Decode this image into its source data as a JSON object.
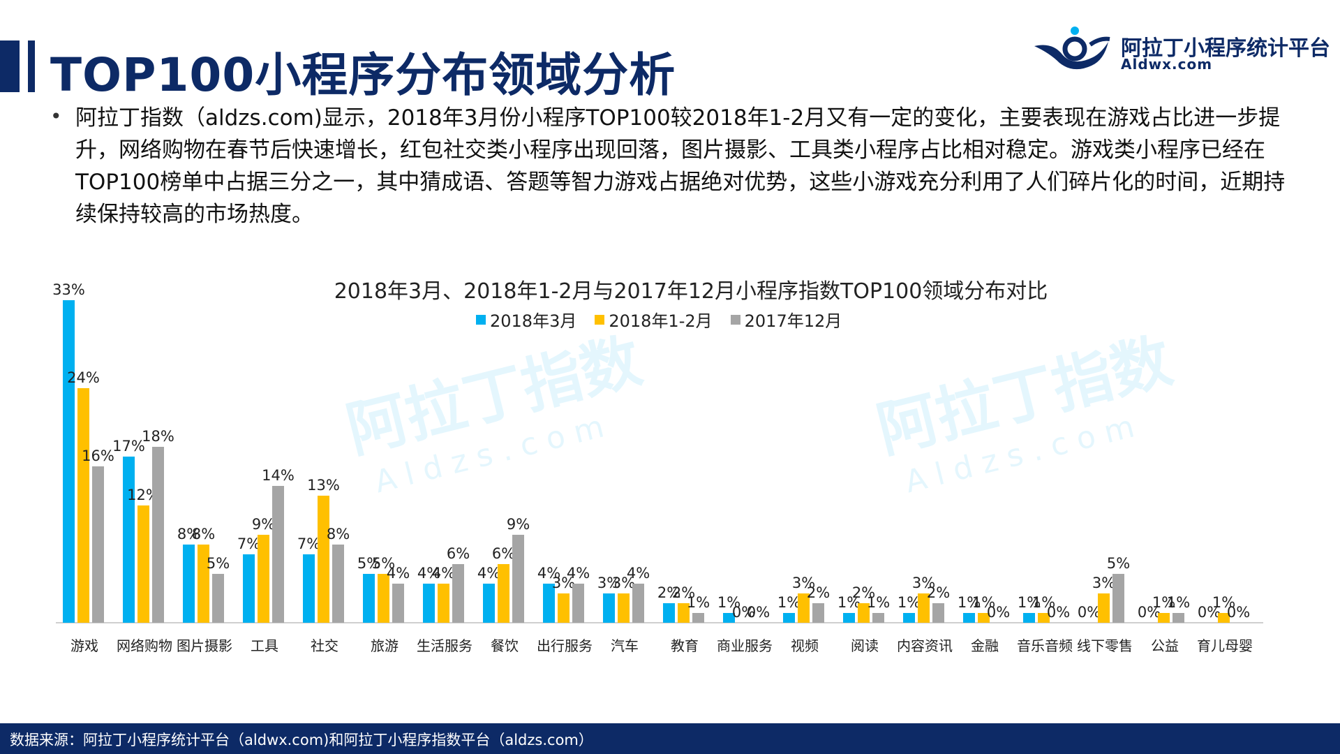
{
  "header": {
    "title": "TOP100小程序分布领域分析",
    "logo_cn": "阿拉丁小程序统计平台",
    "logo_en": "Aldwx.com"
  },
  "bullet": {
    "dot": "•",
    "text": "阿拉丁指数（aldzs.com)显示，2018年3月份小程序TOP100较2018年1-2月又有一定的变化，主要表现在游戏占比进一步提升，网络购物在春节后快速增长，红包社交类小程序出现回落，图片摄影、工具类小程序占比相对稳定。游戏类小程序已经在TOP100榜单中占据三分之一，其中猜成语、答题等智力游戏占据绝对优势，这些小游戏充分利用了人们碎片化的时间，近期持续保持较高的市场热度。"
  },
  "watermark": {
    "cn": "阿拉丁指数",
    "en": "Aldzs.com"
  },
  "colors": {
    "s1": "#00b0f0",
    "s2": "#ffc000",
    "s3": "#a5a5a5",
    "brand": "#0d2a66"
  },
  "chart_data": {
    "type": "bar",
    "title": "2018年3月、2018年1-2月与2017年12月小程序指数TOP100领域分布对比",
    "categories": [
      "游戏",
      "网络购物",
      "图片摄影",
      "工具",
      "社交",
      "旅游",
      "生活服务",
      "餐饮",
      "出行服务",
      "汽车",
      "教育",
      "商业服务",
      "视频",
      "阅读",
      "内容资讯",
      "金融",
      "音乐音频",
      "线下零售",
      "公益",
      "育儿母婴"
    ],
    "series": [
      {
        "name": "2018年3月",
        "color": "#00b0f0",
        "values": [
          33,
          17,
          8,
          7,
          7,
          5,
          4,
          4,
          4,
          3,
          2,
          1,
          1,
          1,
          1,
          1,
          1,
          0,
          0,
          0
        ]
      },
      {
        "name": "2018年1-2月",
        "color": "#ffc000",
        "values": [
          24,
          12,
          8,
          9,
          13,
          5,
          4,
          6,
          3,
          3,
          2,
          0,
          3,
          2,
          3,
          1,
          1,
          3,
          1,
          1
        ]
      },
      {
        "name": "2017年12月",
        "color": "#a5a5a5",
        "values": [
          16,
          18,
          5,
          14,
          8,
          4,
          6,
          9,
          4,
          4,
          1,
          0,
          2,
          1,
          2,
          0,
          0,
          5,
          1,
          0
        ]
      }
    ],
    "value_suffix": "%",
    "legend_position": "top",
    "grid": false
  },
  "footer": {
    "source": "数据来源：阿拉丁小程序统计平台（aldwx.com)和阿拉丁小程序指数平台（aldzs.com）"
  }
}
